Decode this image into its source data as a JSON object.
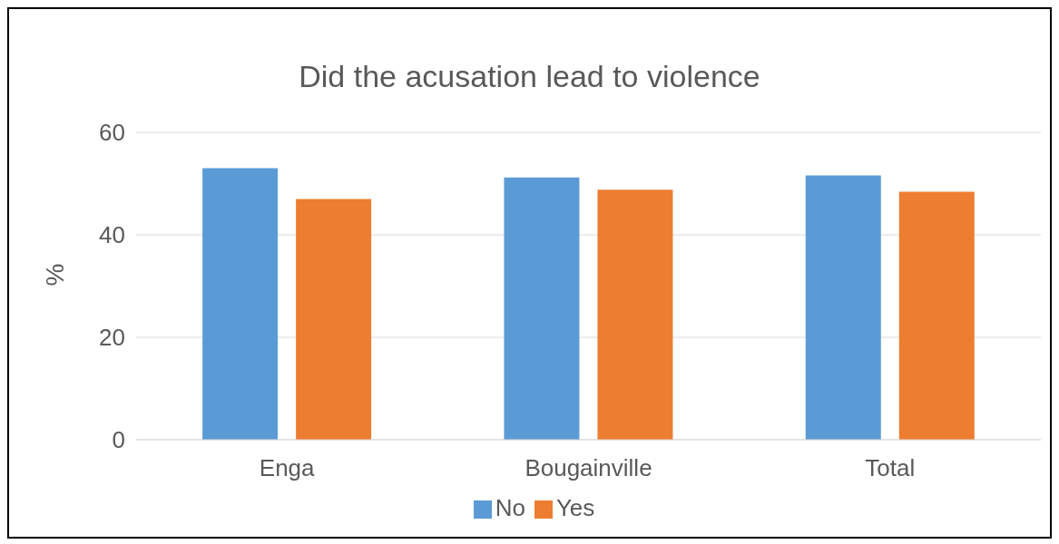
{
  "chart_data": {
    "type": "bar",
    "title": "Did the acusation lead to violence",
    "ylabel": "%",
    "categories": [
      "Enga",
      "Bougainville",
      "Total"
    ],
    "series": [
      {
        "name": "No",
        "color": "#5b9bd5",
        "values": [
          53,
          51.2,
          51.6
        ]
      },
      {
        "name": "Yes",
        "color": "#ed7d31",
        "values": [
          47,
          48.8,
          48.4
        ]
      }
    ],
    "ylim": [
      0,
      60
    ],
    "yticks": [
      0,
      20,
      40,
      60
    ],
    "grid": "y",
    "legend": "bottom"
  }
}
